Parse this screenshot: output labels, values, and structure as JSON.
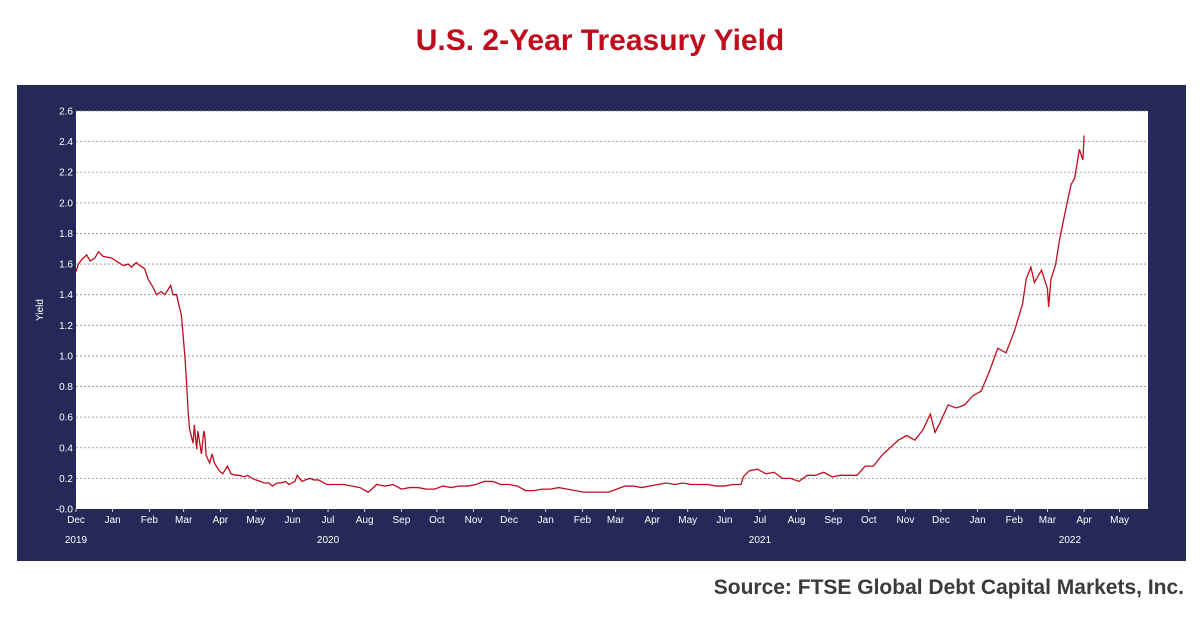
{
  "title": "U.S. 2-Year Treasury Yield",
  "source": "Source: FTSE Global Debt Capital Markets, Inc.",
  "colors": {
    "title": "#c00d1e",
    "frame": "#242958",
    "line": "#c00d1e",
    "grid": "#8c8c8c"
  },
  "chart_data": {
    "type": "line",
    "ylabel": "Yield",
    "ylim": [
      0,
      2.6
    ],
    "yticks": [
      "-0.0",
      "0.2",
      "0.4",
      "0.6",
      "0.8",
      "1.0",
      "1.2",
      "1.4",
      "1.6",
      "1.8",
      "2.0",
      "2.2",
      "2.4",
      "2.6"
    ],
    "grid": "horizontal dotted",
    "x_start": "2019-12-01",
    "x_end": "2022-05-25",
    "month_ticks": [
      {
        "date": "2019-12-01",
        "label": "Dec"
      },
      {
        "date": "2020-01-01",
        "label": "Jan"
      },
      {
        "date": "2020-02-01",
        "label": "Feb"
      },
      {
        "date": "2020-03-01",
        "label": "Mar"
      },
      {
        "date": "2020-04-01",
        "label": "Apr"
      },
      {
        "date": "2020-05-01",
        "label": "May"
      },
      {
        "date": "2020-06-01",
        "label": "Jun"
      },
      {
        "date": "2020-07-01",
        "label": "Jul"
      },
      {
        "date": "2020-08-01",
        "label": "Aug"
      },
      {
        "date": "2020-09-01",
        "label": "Sep"
      },
      {
        "date": "2020-10-01",
        "label": "Oct"
      },
      {
        "date": "2020-11-01",
        "label": "Nov"
      },
      {
        "date": "2020-12-01",
        "label": "Dec"
      },
      {
        "date": "2021-01-01",
        "label": "Jan"
      },
      {
        "date": "2021-02-01",
        "label": "Feb"
      },
      {
        "date": "2021-03-01",
        "label": "Mar"
      },
      {
        "date": "2021-04-01",
        "label": "Apr"
      },
      {
        "date": "2021-05-01",
        "label": "May"
      },
      {
        "date": "2021-06-01",
        "label": "Jun"
      },
      {
        "date": "2021-07-01",
        "label": "Jul"
      },
      {
        "date": "2021-08-01",
        "label": "Aug"
      },
      {
        "date": "2021-09-01",
        "label": "Sep"
      },
      {
        "date": "2021-10-01",
        "label": "Oct"
      },
      {
        "date": "2021-11-01",
        "label": "Nov"
      },
      {
        "date": "2021-12-01",
        "label": "Dec"
      },
      {
        "date": "2022-01-01",
        "label": "Jan"
      },
      {
        "date": "2022-02-01",
        "label": "Feb"
      },
      {
        "date": "2022-03-01",
        "label": "Mar"
      },
      {
        "date": "2022-04-01",
        "label": "Apr"
      },
      {
        "date": "2022-05-01",
        "label": "May"
      }
    ],
    "year_labels": [
      {
        "date": "2019-12-01",
        "label": "2019"
      },
      {
        "date": "2020-07-01",
        "label": "2020"
      },
      {
        "date": "2021-07-01",
        "label": "2021"
      },
      {
        "date": "2022-03-20",
        "label": "2022"
      }
    ],
    "series": [
      {
        "points": [
          [
            "2019-12-01",
            1.55
          ],
          [
            "2019-12-03",
            1.6
          ],
          [
            "2019-12-06",
            1.63
          ],
          [
            "2019-12-10",
            1.66
          ],
          [
            "2019-12-13",
            1.62
          ],
          [
            "2019-12-17",
            1.64
          ],
          [
            "2019-12-20",
            1.68
          ],
          [
            "2019-12-24",
            1.65
          ],
          [
            "2019-12-31",
            1.64
          ],
          [
            "2020-01-06",
            1.61
          ],
          [
            "2020-01-10",
            1.59
          ],
          [
            "2020-01-14",
            1.6
          ],
          [
            "2020-01-17",
            1.58
          ],
          [
            "2020-01-21",
            1.61
          ],
          [
            "2020-01-24",
            1.59
          ],
          [
            "2020-01-28",
            1.57
          ],
          [
            "2020-01-31",
            1.5
          ],
          [
            "2020-02-04",
            1.45
          ],
          [
            "2020-02-07",
            1.4
          ],
          [
            "2020-02-11",
            1.42
          ],
          [
            "2020-02-14",
            1.4
          ],
          [
            "2020-02-19",
            1.46
          ],
          [
            "2020-02-21",
            1.4
          ],
          [
            "2020-02-24",
            1.4
          ],
          [
            "2020-02-26",
            1.33
          ],
          [
            "2020-02-28",
            1.27
          ],
          [
            "2020-03-02",
            1.0
          ],
          [
            "2020-03-03",
            0.88
          ],
          [
            "2020-03-05",
            0.61
          ],
          [
            "2020-03-06",
            0.52
          ],
          [
            "2020-03-09",
            0.43
          ],
          [
            "2020-03-10",
            0.55
          ],
          [
            "2020-03-12",
            0.39
          ],
          [
            "2020-03-13",
            0.51
          ],
          [
            "2020-03-16",
            0.36
          ],
          [
            "2020-03-18",
            0.51
          ],
          [
            "2020-03-19",
            0.47
          ],
          [
            "2020-03-20",
            0.35
          ],
          [
            "2020-03-23",
            0.3
          ],
          [
            "2020-03-25",
            0.36
          ],
          [
            "2020-03-27",
            0.3
          ],
          [
            "2020-03-31",
            0.25
          ],
          [
            "2020-04-03",
            0.23
          ],
          [
            "2020-04-07",
            0.28
          ],
          [
            "2020-04-10",
            0.23
          ],
          [
            "2020-04-14",
            0.22
          ],
          [
            "2020-04-17",
            0.22
          ],
          [
            "2020-04-21",
            0.21
          ],
          [
            "2020-04-24",
            0.22
          ],
          [
            "2020-04-28",
            0.2
          ],
          [
            "2020-05-01",
            0.19
          ],
          [
            "2020-05-05",
            0.18
          ],
          [
            "2020-05-08",
            0.17
          ],
          [
            "2020-05-12",
            0.17
          ],
          [
            "2020-05-15",
            0.15
          ],
          [
            "2020-05-19",
            0.17
          ],
          [
            "2020-05-22",
            0.17
          ],
          [
            "2020-05-26",
            0.18
          ],
          [
            "2020-05-29",
            0.16
          ],
          [
            "2020-06-03",
            0.18
          ],
          [
            "2020-06-05",
            0.22
          ],
          [
            "2020-06-09",
            0.18
          ],
          [
            "2020-06-12",
            0.19
          ],
          [
            "2020-06-16",
            0.2
          ],
          [
            "2020-06-19",
            0.19
          ],
          [
            "2020-06-23",
            0.19
          ],
          [
            "2020-06-30",
            0.16
          ],
          [
            "2020-07-07",
            0.16
          ],
          [
            "2020-07-14",
            0.16
          ],
          [
            "2020-07-21",
            0.15
          ],
          [
            "2020-07-28",
            0.14
          ],
          [
            "2020-08-04",
            0.11
          ],
          [
            "2020-08-07",
            0.13
          ],
          [
            "2020-08-11",
            0.16
          ],
          [
            "2020-08-18",
            0.15
          ],
          [
            "2020-08-25",
            0.16
          ],
          [
            "2020-09-01",
            0.13
          ],
          [
            "2020-09-08",
            0.14
          ],
          [
            "2020-09-15",
            0.14
          ],
          [
            "2020-09-22",
            0.13
          ],
          [
            "2020-09-29",
            0.13
          ],
          [
            "2020-10-06",
            0.15
          ],
          [
            "2020-10-13",
            0.14
          ],
          [
            "2020-10-20",
            0.15
          ],
          [
            "2020-10-27",
            0.15
          ],
          [
            "2020-11-03",
            0.16
          ],
          [
            "2020-11-10",
            0.18
          ],
          [
            "2020-11-17",
            0.18
          ],
          [
            "2020-11-24",
            0.16
          ],
          [
            "2020-12-01",
            0.16
          ],
          [
            "2020-12-08",
            0.15
          ],
          [
            "2020-12-15",
            0.12
          ],
          [
            "2020-12-22",
            0.12
          ],
          [
            "2020-12-29",
            0.13
          ],
          [
            "2021-01-05",
            0.13
          ],
          [
            "2021-01-12",
            0.14
          ],
          [
            "2021-01-19",
            0.13
          ],
          [
            "2021-01-26",
            0.12
          ],
          [
            "2021-02-02",
            0.11
          ],
          [
            "2021-02-09",
            0.11
          ],
          [
            "2021-02-16",
            0.11
          ],
          [
            "2021-02-23",
            0.11
          ],
          [
            "2021-03-02",
            0.13
          ],
          [
            "2021-03-09",
            0.15
          ],
          [
            "2021-03-16",
            0.15
          ],
          [
            "2021-03-23",
            0.14
          ],
          [
            "2021-03-30",
            0.15
          ],
          [
            "2021-04-06",
            0.16
          ],
          [
            "2021-04-13",
            0.17
          ],
          [
            "2021-04-20",
            0.16
          ],
          [
            "2021-04-27",
            0.17
          ],
          [
            "2021-05-04",
            0.16
          ],
          [
            "2021-05-11",
            0.16
          ],
          [
            "2021-05-18",
            0.16
          ],
          [
            "2021-05-25",
            0.15
          ],
          [
            "2021-06-01",
            0.15
          ],
          [
            "2021-06-08",
            0.16
          ],
          [
            "2021-06-15",
            0.16
          ],
          [
            "2021-06-17",
            0.21
          ],
          [
            "2021-06-22",
            0.25
          ],
          [
            "2021-06-29",
            0.26
          ],
          [
            "2021-07-06",
            0.23
          ],
          [
            "2021-07-13",
            0.24
          ],
          [
            "2021-07-20",
            0.2
          ],
          [
            "2021-07-27",
            0.2
          ],
          [
            "2021-08-03",
            0.18
          ],
          [
            "2021-08-10",
            0.22
          ],
          [
            "2021-08-17",
            0.22
          ],
          [
            "2021-08-24",
            0.24
          ],
          [
            "2021-08-31",
            0.21
          ],
          [
            "2021-09-07",
            0.22
          ],
          [
            "2021-09-14",
            0.22
          ],
          [
            "2021-09-21",
            0.22
          ],
          [
            "2021-09-28",
            0.28
          ],
          [
            "2021-10-05",
            0.28
          ],
          [
            "2021-10-12",
            0.35
          ],
          [
            "2021-10-19",
            0.4
          ],
          [
            "2021-10-26",
            0.45
          ],
          [
            "2021-11-02",
            0.48
          ],
          [
            "2021-11-09",
            0.45
          ],
          [
            "2021-11-16",
            0.52
          ],
          [
            "2021-11-22",
            0.62
          ],
          [
            "2021-11-26",
            0.5
          ],
          [
            "2021-11-30",
            0.56
          ],
          [
            "2021-12-07",
            0.68
          ],
          [
            "2021-12-14",
            0.66
          ],
          [
            "2021-12-21",
            0.68
          ],
          [
            "2021-12-28",
            0.74
          ],
          [
            "2022-01-04",
            0.77
          ],
          [
            "2022-01-11",
            0.9
          ],
          [
            "2022-01-18",
            1.05
          ],
          [
            "2022-01-25",
            1.02
          ],
          [
            "2022-02-01",
            1.16
          ],
          [
            "2022-02-08",
            1.34
          ],
          [
            "2022-02-11",
            1.5
          ],
          [
            "2022-02-15",
            1.58
          ],
          [
            "2022-02-18",
            1.48
          ],
          [
            "2022-02-24",
            1.56
          ],
          [
            "2022-03-01",
            1.44
          ],
          [
            "2022-03-02",
            1.32
          ],
          [
            "2022-03-04",
            1.5
          ],
          [
            "2022-03-08",
            1.6
          ],
          [
            "2022-03-11",
            1.75
          ],
          [
            "2022-03-16",
            1.94
          ],
          [
            "2022-03-21",
            2.12
          ],
          [
            "2022-03-24",
            2.16
          ],
          [
            "2022-03-28",
            2.35
          ],
          [
            "2022-03-31",
            2.28
          ],
          [
            "2022-04-01",
            2.44
          ]
        ]
      }
    ]
  }
}
